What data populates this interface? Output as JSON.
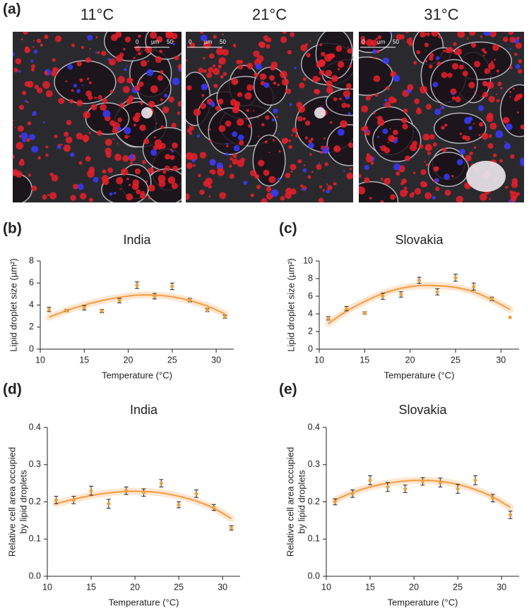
{
  "micrographs": {
    "label": "(a)",
    "panels": [
      {
        "title": "11°C",
        "scale": [
          "0",
          "µm",
          "50"
        ]
      },
      {
        "title": "21°C",
        "scale": [
          "0",
          "µm",
          "50"
        ]
      },
      {
        "title": "31°C",
        "scale": [
          "0",
          "µm",
          "50"
        ]
      }
    ]
  },
  "chart_data": [
    {
      "type": "scatter",
      "label": "(b)",
      "title": "India",
      "x_label": "Temperature (°C)",
      "y_label": [
        "Lipid droplet size (µm²)"
      ],
      "x": [
        11,
        13,
        15,
        17,
        19,
        21,
        23,
        25,
        27,
        29,
        31
      ],
      "values": [
        3.6,
        3.5,
        3.75,
        3.45,
        4.4,
        5.8,
        4.8,
        5.7,
        4.45,
        3.55,
        2.95
      ],
      "errors": [
        0.2,
        0.1,
        0.2,
        0.15,
        0.2,
        0.3,
        0.25,
        0.3,
        0.15,
        0.15,
        0.15
      ],
      "color": "#f0a040",
      "fit": {
        "values": [
          2.9,
          3.5,
          4.0,
          4.4,
          4.7,
          4.9,
          4.9,
          4.75,
          4.4,
          3.9,
          3.2
        ],
        "color": "#f5a04a"
      },
      "xlim": [
        10,
        32
      ],
      "ylim": [
        0,
        8
      ],
      "xticks": [
        10,
        15,
        20,
        25,
        30
      ],
      "yticks": [
        0,
        2,
        4,
        6,
        8
      ]
    },
    {
      "type": "scatter",
      "label": "(c)",
      "title": "Slovakia",
      "x_label": "Temperature (°C)",
      "y_label": [
        "Lipid droplet size (µm²)"
      ],
      "x": [
        11,
        13,
        15,
        17,
        19,
        21,
        23,
        25,
        27,
        29,
        31
      ],
      "values": [
        3.5,
        4.6,
        4.1,
        6.0,
        6.2,
        7.8,
        6.5,
        8.1,
        7.1,
        5.7,
        3.6
      ],
      "errors": [
        0.2,
        0.25,
        0.15,
        0.35,
        0.3,
        0.35,
        0.35,
        0.4,
        0.4,
        0.2,
        0
      ],
      "color": "#f0a040",
      "fit": {
        "values": [
          2.9,
          4.3,
          5.4,
          6.3,
          6.9,
          7.2,
          7.2,
          7.0,
          6.5,
          5.6,
          4.5
        ],
        "color": "#f5a04a"
      },
      "xlim": [
        10,
        32
      ],
      "ylim": [
        0,
        10
      ],
      "xticks": [
        10,
        15,
        20,
        25,
        30
      ],
      "yticks": [
        0,
        2,
        4,
        6,
        8,
        10
      ]
    },
    {
      "type": "scatter",
      "label": "(d)",
      "title": "India",
      "x_label": "Temperature (°C)",
      "y_label": [
        "Relative cell area occupied",
        "by lipid droplets"
      ],
      "x": [
        11,
        13,
        15,
        17,
        19,
        21,
        23,
        25,
        27,
        29,
        31
      ],
      "values": [
        0.205,
        0.205,
        0.23,
        0.195,
        0.23,
        0.225,
        0.25,
        0.192,
        0.222,
        0.185,
        0.13
      ],
      "errors": [
        0.01,
        0.01,
        0.012,
        0.012,
        0.01,
        0.01,
        0.01,
        0.008,
        0.01,
        0.008,
        0.006
      ],
      "color": "#f0a040",
      "fit": {
        "values": [
          0.195,
          0.207,
          0.217,
          0.224,
          0.228,
          0.228,
          0.224,
          0.215,
          0.202,
          0.183,
          0.155
        ],
        "color": "#f5a04a"
      },
      "xlim": [
        10,
        32
      ],
      "ylim": [
        0,
        0.4
      ],
      "xticks": [
        10,
        15,
        20,
        25,
        30
      ],
      "yticks": [
        {
          "value": 0,
          "label": "0.0"
        },
        0.1,
        0.2,
        0.3,
        0.4
      ]
    },
    {
      "type": "scatter",
      "label": "(e)",
      "title": "Slovakia",
      "x_label": "Temperature (°C)",
      "y_label": [
        "Relative cell area occupied",
        "by lipid droplets"
      ],
      "x": [
        11,
        13,
        15,
        17,
        19,
        21,
        23,
        25,
        27,
        29,
        31
      ],
      "values": [
        0.2,
        0.222,
        0.258,
        0.24,
        0.235,
        0.255,
        0.252,
        0.235,
        0.258,
        0.21,
        0.165
      ],
      "errors": [
        0.008,
        0.01,
        0.012,
        0.012,
        0.01,
        0.01,
        0.012,
        0.012,
        0.012,
        0.01,
        0.01
      ],
      "color": "#f0a040",
      "fit": {
        "values": [
          0.205,
          0.225,
          0.24,
          0.25,
          0.256,
          0.258,
          0.255,
          0.247,
          0.233,
          0.213,
          0.185
        ],
        "color": "#f5a04a"
      },
      "xlim": [
        10,
        32
      ],
      "ylim": [
        0,
        0.4
      ],
      "xticks": [
        10,
        15,
        20,
        25,
        30
      ],
      "yticks": [
        {
          "value": 0,
          "label": "0.0"
        },
        0.1,
        0.2,
        0.3,
        0.4
      ]
    }
  ]
}
